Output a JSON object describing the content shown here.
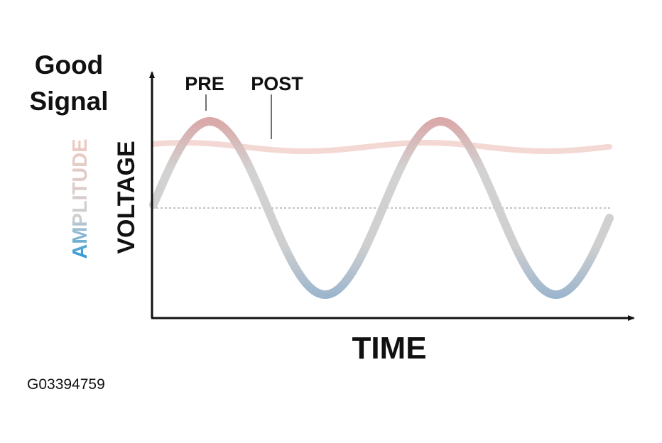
{
  "title": {
    "lines": [
      "Good",
      "Signal"
    ]
  },
  "labels": {
    "pre": "PRE",
    "post": "POST",
    "amplitude": "AMPLITUDE",
    "voltage": "VOLTAGE",
    "time": "TIME"
  },
  "figure_id": "G03394759"
}
